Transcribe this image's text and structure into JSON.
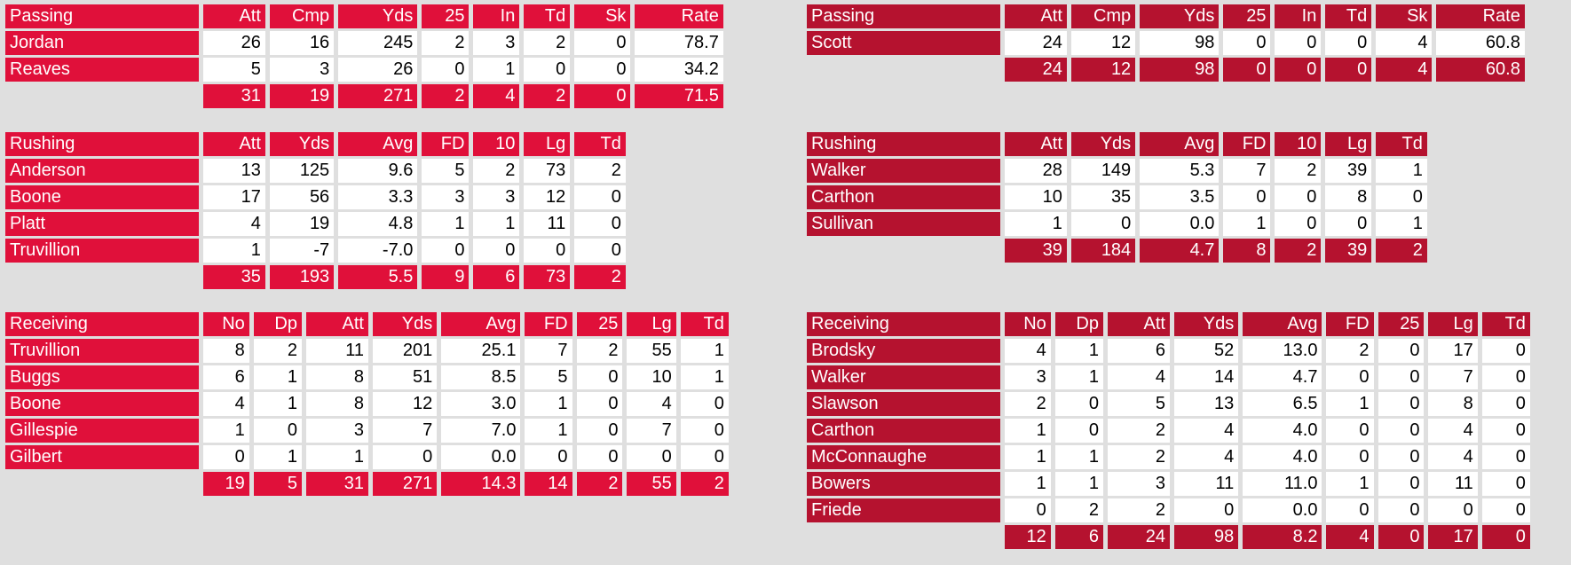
{
  "teams": [
    {
      "passing": {
        "columns": [
          "Passing",
          "Att",
          "Cmp",
          "Yds",
          "25",
          "In",
          "Td",
          "Sk",
          "Rate"
        ],
        "rows": [
          [
            "Jordan",
            "26",
            "16",
            "245",
            "2",
            "3",
            "2",
            "0",
            "78.7"
          ],
          [
            "Reaves",
            "5",
            "3",
            "26",
            "0",
            "1",
            "0",
            "0",
            "34.2"
          ]
        ],
        "totals": [
          "31",
          "19",
          "271",
          "2",
          "4",
          "2",
          "0",
          "71.5"
        ]
      },
      "rushing": {
        "columns": [
          "Rushing",
          "Att",
          "Yds",
          "Avg",
          "FD",
          "10",
          "Lg",
          "Td"
        ],
        "rows": [
          [
            "Anderson",
            "13",
            "125",
            "9.6",
            "5",
            "2",
            "73",
            "2"
          ],
          [
            "Boone",
            "17",
            "56",
            "3.3",
            "3",
            "3",
            "12",
            "0"
          ],
          [
            "Platt",
            "4",
            "19",
            "4.8",
            "1",
            "1",
            "11",
            "0"
          ],
          [
            "Truvillion",
            "1",
            "-7",
            "-7.0",
            "0",
            "0",
            "0",
            "0"
          ]
        ],
        "totals": [
          "35",
          "193",
          "5.5",
          "9",
          "6",
          "73",
          "2"
        ]
      },
      "receiving": {
        "columns": [
          "Receiving",
          "No",
          "Dp",
          "Att",
          "Yds",
          "Avg",
          "FD",
          "25",
          "Lg",
          "Td"
        ],
        "rows": [
          [
            "Truvillion",
            "8",
            "2",
            "11",
            "201",
            "25.1",
            "7",
            "2",
            "55",
            "1"
          ],
          [
            "Buggs",
            "6",
            "1",
            "8",
            "51",
            "8.5",
            "5",
            "0",
            "10",
            "1"
          ],
          [
            "Boone",
            "4",
            "1",
            "8",
            "12",
            "3.0",
            "1",
            "0",
            "4",
            "0"
          ],
          [
            "Gillespie",
            "1",
            "0",
            "3",
            "7",
            "7.0",
            "1",
            "0",
            "7",
            "0"
          ],
          [
            "Gilbert",
            "0",
            "1",
            "1",
            "0",
            "0.0",
            "0",
            "0",
            "0",
            "0"
          ]
        ],
        "totals": [
          "19",
          "5",
          "31",
          "271",
          "14.3",
          "14",
          "2",
          "55",
          "2"
        ]
      }
    },
    {
      "passing": {
        "columns": [
          "Passing",
          "Att",
          "Cmp",
          "Yds",
          "25",
          "In",
          "Td",
          "Sk",
          "Rate"
        ],
        "rows": [
          [
            "Scott",
            "24",
            "12",
            "98",
            "0",
            "0",
            "0",
            "4",
            "60.8"
          ]
        ],
        "totals": [
          "24",
          "12",
          "98",
          "0",
          "0",
          "0",
          "4",
          "60.8"
        ]
      },
      "rushing": {
        "columns": [
          "Rushing",
          "Att",
          "Yds",
          "Avg",
          "FD",
          "10",
          "Lg",
          "Td"
        ],
        "rows": [
          [
            "Walker",
            "28",
            "149",
            "5.3",
            "7",
            "2",
            "39",
            "1"
          ],
          [
            "Carthon",
            "10",
            "35",
            "3.5",
            "0",
            "0",
            "8",
            "0"
          ],
          [
            "Sullivan",
            "1",
            "0",
            "0.0",
            "1",
            "0",
            "0",
            "1"
          ]
        ],
        "totals": [
          "39",
          "184",
          "4.7",
          "8",
          "2",
          "39",
          "2"
        ]
      },
      "receiving": {
        "columns": [
          "Receiving",
          "No",
          "Dp",
          "Att",
          "Yds",
          "Avg",
          "FD",
          "25",
          "Lg",
          "Td"
        ],
        "rows": [
          [
            "Brodsky",
            "4",
            "1",
            "6",
            "52",
            "13.0",
            "2",
            "0",
            "17",
            "0"
          ],
          [
            "Walker",
            "3",
            "1",
            "4",
            "14",
            "4.7",
            "0",
            "0",
            "7",
            "0"
          ],
          [
            "Slawson",
            "2",
            "0",
            "5",
            "13",
            "6.5",
            "1",
            "0",
            "8",
            "0"
          ],
          [
            "Carthon",
            "1",
            "0",
            "2",
            "4",
            "4.0",
            "0",
            "0",
            "4",
            "0"
          ],
          [
            "McConnaughe",
            "1",
            "1",
            "2",
            "4",
            "4.0",
            "0",
            "0",
            "4",
            "0"
          ],
          [
            "Bowers",
            "1",
            "1",
            "3",
            "11",
            "11.0",
            "1",
            "0",
            "11",
            "0"
          ],
          [
            "Friede",
            "0",
            "2",
            "2",
            "0",
            "0.0",
            "0",
            "0",
            "0",
            "0"
          ]
        ],
        "totals": [
          "12",
          "6",
          "24",
          "98",
          "8.2",
          "4",
          "0",
          "17",
          "0"
        ]
      }
    }
  ]
}
